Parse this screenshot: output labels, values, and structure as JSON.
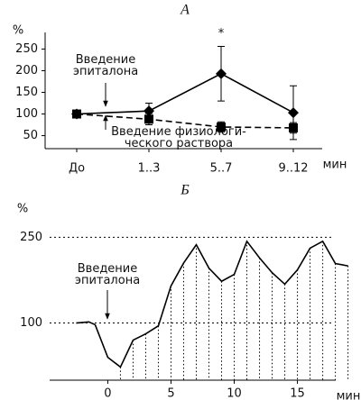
{
  "chart_data": [
    {
      "type": "line",
      "title": "А",
      "y_label": "%",
      "x_label": "мин",
      "categories": [
        "До",
        "1..3",
        "5..7",
        "9..12"
      ],
      "ylim": [
        20,
        280
      ],
      "yticks": [
        50,
        100,
        150,
        200,
        250
      ],
      "series": [
        {
          "name": "Введение эпиталона",
          "color": "#000000",
          "line_style": "solid",
          "marker": "diamond",
          "values": [
            100,
            107,
            193,
            103
          ],
          "errors": [
            null,
            18,
            63,
            62
          ]
        },
        {
          "name": "Введение физиологи-ческого раствора",
          "color": "#000000",
          "line_style": "dashed",
          "marker": "square",
          "values": [
            100,
            88,
            70,
            68
          ],
          "errors": [
            null,
            13,
            12,
            12
          ]
        }
      ],
      "annotations": [
        {
          "text": "*"
        }
      ]
    },
    {
      "type": "line",
      "title": "Б",
      "y_label": "%",
      "x_label": "мин",
      "xlim": [
        -4.6,
        18.6
      ],
      "xticks": [
        0,
        5,
        10,
        15
      ],
      "ylim": [
        0,
        290
      ],
      "yticks": [
        100,
        250
      ],
      "grid": true,
      "droplines": true,
      "x": [
        -2.5,
        -1.5,
        -1,
        0,
        1,
        2,
        3,
        4,
        5,
        6,
        7,
        8,
        9,
        10,
        11,
        12,
        13,
        14,
        15,
        16,
        17,
        18,
        19
      ],
      "series": [
        {
          "name": "Введение эпиталона",
          "color": "#000000",
          "values": [
            100,
            102,
            97,
            40,
            23,
            70,
            81,
            95,
            165,
            205,
            237,
            196,
            173,
            185,
            243,
            214,
            188,
            168,
            193,
            231,
            243,
            204,
            200
          ]
        }
      ]
    }
  ]
}
